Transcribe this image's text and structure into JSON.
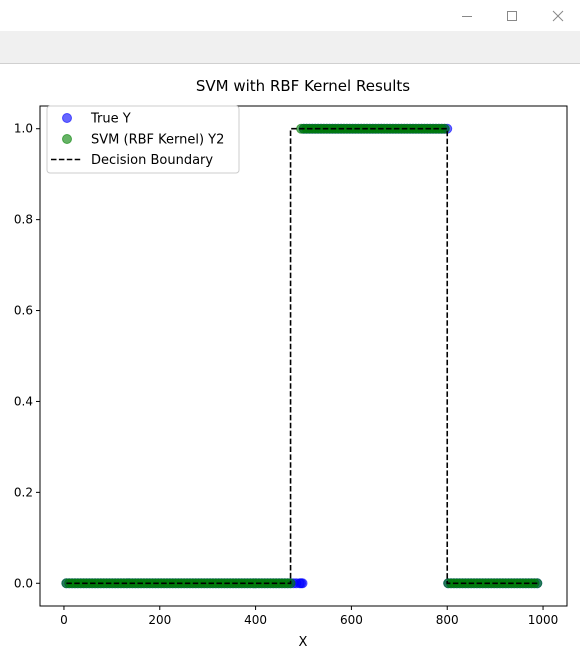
{
  "window": {
    "controls": [
      {
        "name": "minimize",
        "icon": "minimize-icon"
      },
      {
        "name": "maximize",
        "icon": "maximize-icon"
      },
      {
        "name": "close",
        "icon": "close-icon"
      }
    ]
  },
  "chart_data": {
    "type": "scatter",
    "title": "SVM with RBF Kernel Results",
    "xlabel": "X",
    "ylabel": "",
    "xlim": [
      -50,
      1050
    ],
    "ylim": [
      -0.05,
      1.05
    ],
    "xticks": [
      0,
      200,
      400,
      600,
      800,
      1000
    ],
    "yticks": [
      0.0,
      0.2,
      0.4,
      0.6,
      0.8,
      1.0
    ],
    "xtick_labels": [
      "0",
      "200",
      "400",
      "600",
      "800",
      "1000"
    ],
    "ytick_labels": [
      "0.0",
      "0.2",
      "0.4",
      "0.6",
      "0.8",
      "1.0"
    ],
    "grid": false,
    "legend_position": "top-left",
    "series": [
      {
        "name": "True Y",
        "kind": "scatter",
        "color": "#0000ff",
        "segments": [
          {
            "x_start": 5,
            "x_end": 490,
            "step": 6,
            "y": 0
          },
          {
            "x_start": 492,
            "x_end": 498,
            "step": 3,
            "y": 0
          },
          {
            "x_start": 500,
            "x_end": 800,
            "step": 6,
            "y": 1
          },
          {
            "x_start": 802,
            "x_end": 990,
            "step": 6,
            "y": 0
          }
        ]
      },
      {
        "name": "SVM (RBF Kernel) Y2",
        "kind": "scatter",
        "color": "#008000",
        "segments": [
          {
            "x_start": 5,
            "x_end": 475,
            "step": 6,
            "y": 0
          },
          {
            "x_start": 495,
            "x_end": 800,
            "step": 6,
            "y": 1
          },
          {
            "x_start": 802,
            "x_end": 990,
            "step": 6,
            "y": 0
          }
        ]
      },
      {
        "name": "Decision Boundary",
        "kind": "line",
        "color": "#000000",
        "dash": "dashed",
        "x": [
          5,
          473,
          473,
          800,
          800,
          990
        ],
        "y": [
          0,
          0,
          1,
          1,
          0,
          0
        ]
      }
    ]
  }
}
